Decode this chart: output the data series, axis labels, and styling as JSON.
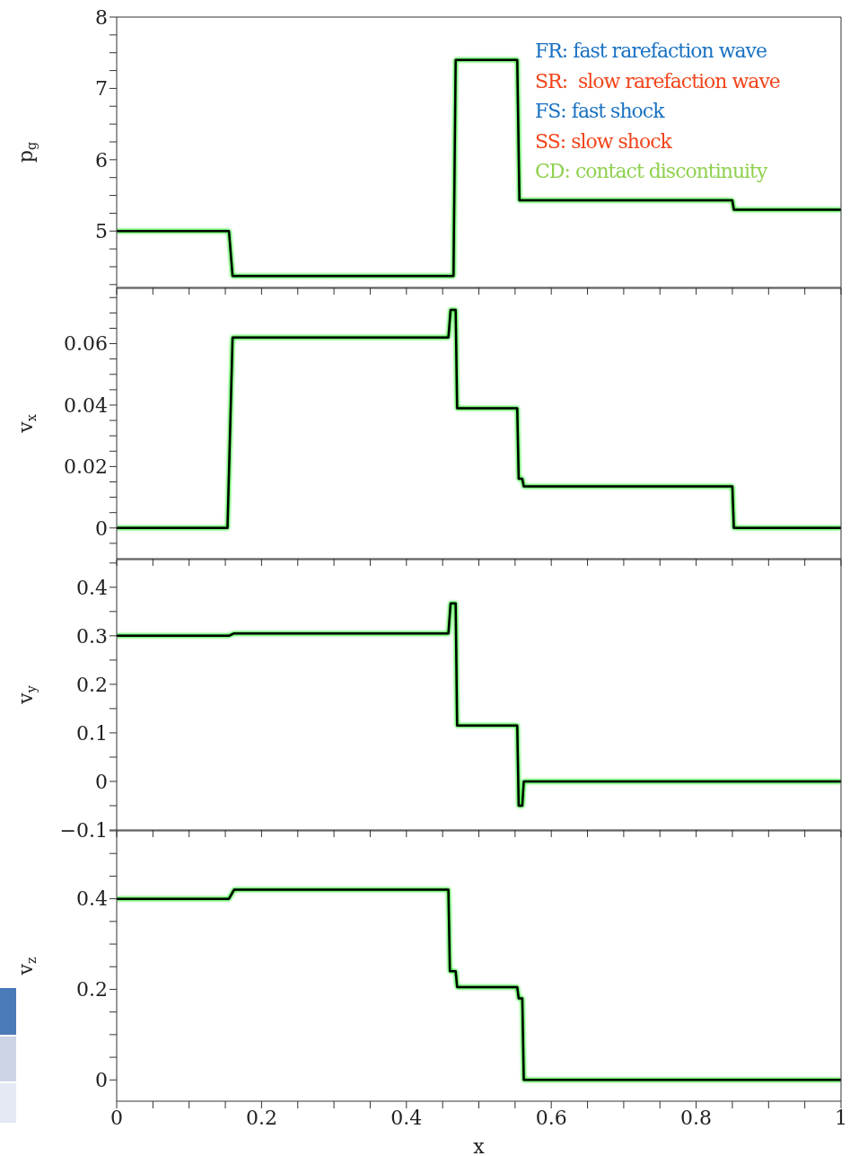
{
  "chart_data": [
    {
      "type": "line",
      "ylabel": "p$_{g}$",
      "xlim": [
        0,
        1
      ],
      "ylim": [
        4.21,
        8
      ],
      "tick_labels": "y",
      "xticks": [
        0,
        {
          "value": 0.05,
          "label": null
        },
        {
          "value": 0.1,
          "label": null
        },
        {
          "value": 0.15,
          "label": null
        },
        {
          "value": 0.2,
          "label": null
        },
        {
          "value": 0.25,
          "label": null
        },
        {
          "value": 0.3,
          "label": null
        },
        {
          "value": 0.35,
          "label": null
        },
        {
          "value": 0.4,
          "label": null
        },
        {
          "value": 0.45,
          "label": null
        },
        {
          "value": 0.5,
          "label": null
        },
        {
          "value": 0.55,
          "label": null
        },
        {
          "value": 0.6,
          "label": null
        },
        {
          "value": 0.65,
          "label": null
        },
        {
          "value": 0.7,
          "label": null
        },
        {
          "value": 0.75,
          "label": null
        },
        {
          "value": 0.8,
          "label": null
        },
        {
          "value": 0.85,
          "label": null
        },
        {
          "value": 0.9,
          "label": null
        },
        {
          "value": 0.95,
          "label": null
        },
        {
          "value": 1,
          "label": null
        }
      ],
      "yticks": [
        {
          "value": 4.25,
          "label": null
        },
        {
          "value": 4.5,
          "label": null
        },
        {
          "value": 4.75,
          "label": null
        },
        5,
        {
          "value": 5.25,
          "label": null
        },
        {
          "value": 5.5,
          "label": null
        },
        {
          "value": 5.75,
          "label": null
        },
        6,
        {
          "value": 6.25,
          "label": null
        },
        {
          "value": 6.5,
          "label": null
        },
        {
          "value": 6.75,
          "label": null
        },
        7,
        {
          "value": 7.25,
          "label": null
        },
        {
          "value": 7.5,
          "label": null
        },
        {
          "value": 7.75,
          "label": null
        },
        8
      ],
      "annotations": [
        "FR: fast rarefaction wave",
        "SR:  slow rarefaction wave",
        "FS: fast shock",
        "SS: slow shock",
        "CD: contact discontinuity"
      ],
      "series": [
        {
          "color": "#000000",
          "x": [
            0,
            0.155,
            0.16,
            0.465,
            0.468,
            0.553,
            0.556,
            0.85,
            0.852,
            1
          ],
          "values": [
            5,
            5,
            4.37,
            4.37,
            7.4,
            7.4,
            5.43,
            5.43,
            5.3,
            5.3
          ]
        }
      ]
    },
    {
      "type": "line",
      "ylabel": "v$_{x}$",
      "xlim": [
        0,
        1
      ],
      "ylim": [
        -0.01,
        0.078
      ],
      "tick_labels": "y",
      "xticks": [
        0,
        {
          "value": 0.05,
          "label": null
        },
        {
          "value": 0.1,
          "label": null
        },
        {
          "value": 0.15,
          "label": null
        },
        {
          "value": 0.2,
          "label": null
        },
        {
          "value": 0.25,
          "label": null
        },
        {
          "value": 0.3,
          "label": null
        },
        {
          "value": 0.35,
          "label": null
        },
        {
          "value": 0.4,
          "label": null
        },
        {
          "value": 0.45,
          "label": null
        },
        {
          "value": 0.5,
          "label": null
        },
        {
          "value": 0.55,
          "label": null
        },
        {
          "value": 0.6,
          "label": null
        },
        {
          "value": 0.65,
          "label": null
        },
        {
          "value": 0.7,
          "label": null
        },
        {
          "value": 0.75,
          "label": null
        },
        {
          "value": 0.8,
          "label": null
        },
        {
          "value": 0.85,
          "label": null
        },
        {
          "value": 0.9,
          "label": null
        },
        {
          "value": 0.95,
          "label": null
        },
        {
          "value": 1,
          "label": null
        }
      ],
      "yticks": [
        {
          "value": -0.005,
          "label": null
        },
        0,
        {
          "value": 0.005,
          "label": null
        },
        {
          "value": 0.01,
          "label": null
        },
        {
          "value": 0.015,
          "label": null
        },
        {
          "value": 0.02,
          "label": "0.02"
        },
        {
          "value": 0.025,
          "label": null
        },
        {
          "value": 0.03,
          "label": null
        },
        {
          "value": 0.035,
          "label": null
        },
        {
          "value": 0.04,
          "label": "0.04"
        },
        {
          "value": 0.045,
          "label": null
        },
        {
          "value": 0.05,
          "label": null
        },
        {
          "value": 0.055,
          "label": null
        },
        {
          "value": 0.06,
          "label": "0.06"
        },
        {
          "value": 0.065,
          "label": null
        },
        {
          "value": 0.07,
          "label": null
        },
        {
          "value": 0.075,
          "label": null
        }
      ],
      "series": [
        {
          "color": "#000000",
          "x": [
            0,
            0.153,
            0.16,
            0.458,
            0.461,
            0.468,
            0.47,
            0.553,
            0.555,
            0.56,
            0.562,
            0.85,
            0.852,
            1
          ],
          "values": [
            0,
            0,
            0.062,
            0.062,
            0.071,
            0.071,
            0.039,
            0.039,
            0.016,
            0.016,
            0.0135,
            0.0135,
            0,
            0
          ]
        }
      ]
    },
    {
      "type": "line",
      "ylabel": "v$_{y}$",
      "xlim": [
        0,
        1
      ],
      "ylim": [
        -0.1,
        0.457
      ],
      "tick_labels": "y",
      "xticks": [
        0,
        {
          "value": 0.05,
          "label": null
        },
        {
          "value": 0.1,
          "label": null
        },
        {
          "value": 0.15,
          "label": null
        },
        {
          "value": 0.2,
          "label": null
        },
        {
          "value": 0.25,
          "label": null
        },
        {
          "value": 0.3,
          "label": null
        },
        {
          "value": 0.35,
          "label": null
        },
        {
          "value": 0.4,
          "label": null
        },
        {
          "value": 0.45,
          "label": null
        },
        {
          "value": 0.5,
          "label": null
        },
        {
          "value": 0.55,
          "label": null
        },
        {
          "value": 0.6,
          "label": null
        },
        {
          "value": 0.65,
          "label": null
        },
        {
          "value": 0.7,
          "label": null
        },
        {
          "value": 0.75,
          "label": null
        },
        {
          "value": 0.8,
          "label": null
        },
        {
          "value": 0.85,
          "label": null
        },
        {
          "value": 0.9,
          "label": null
        },
        {
          "value": 0.95,
          "label": null
        },
        {
          "value": 1,
          "label": null
        }
      ],
      "yticks": [
        {
          "value": -0.1,
          "label": "−0.1"
        },
        {
          "value": -0.05,
          "label": null
        },
        0,
        {
          "value": 0.05,
          "label": null
        },
        0.1,
        {
          "value": 0.15,
          "label": null
        },
        0.2,
        {
          "value": 0.25,
          "label": null
        },
        0.3,
        {
          "value": 0.35,
          "label": null
        },
        0.4,
        {
          "value": 0.45,
          "label": null
        }
      ],
      "series": [
        {
          "color": "#000000",
          "x": [
            0,
            0.155,
            0.162,
            0.458,
            0.461,
            0.468,
            0.47,
            0.553,
            0.555,
            0.56,
            0.562,
            1
          ],
          "values": [
            0.3,
            0.3,
            0.305,
            0.305,
            0.367,
            0.367,
            0.115,
            0.115,
            -0.05,
            -0.05,
            0,
            0
          ]
        }
      ]
    },
    {
      "type": "line",
      "ylabel": "v$_{z}$",
      "xlabel": "x",
      "xlim": [
        0,
        1
      ],
      "ylim": [
        -0.047,
        0.55
      ],
      "xticks": [
        0,
        {
          "value": 0.05,
          "label": null
        },
        {
          "value": 0.1,
          "label": null
        },
        {
          "value": 0.15,
          "label": null
        },
        0.2,
        {
          "value": 0.25,
          "label": null
        },
        {
          "value": 0.3,
          "label": null
        },
        {
          "value": 0.35,
          "label": null
        },
        0.4,
        {
          "value": 0.45,
          "label": null
        },
        {
          "value": 0.5,
          "label": null
        },
        {
          "value": 0.55,
          "label": null
        },
        0.6,
        {
          "value": 0.65,
          "label": null
        },
        {
          "value": 0.7,
          "label": null
        },
        {
          "value": 0.75,
          "label": null
        },
        0.8,
        {
          "value": 0.85,
          "label": null
        },
        {
          "value": 0.9,
          "label": null
        },
        {
          "value": 0.95,
          "label": null
        },
        1
      ],
      "yticks": [
        0,
        {
          "value": 0.05,
          "label": null
        },
        {
          "value": 0.1,
          "label": null
        },
        {
          "value": 0.15,
          "label": null
        },
        0.2,
        {
          "value": 0.25,
          "label": null
        },
        {
          "value": 0.3,
          "label": null
        },
        {
          "value": 0.35,
          "label": null
        },
        0.4,
        {
          "value": 0.45,
          "label": null
        },
        {
          "value": 0.5,
          "label": null
        },
        {
          "value": 0.55,
          "label": null
        }
      ],
      "series": [
        {
          "color": "#000000",
          "x": [
            0,
            0.155,
            0.162,
            0.458,
            0.46,
            0.468,
            0.47,
            0.553,
            0.555,
            0.56,
            0.562,
            1
          ],
          "values": [
            0.4,
            0.4,
            0.42,
            0.42,
            0.24,
            0.24,
            0.205,
            0.205,
            0.18,
            0.18,
            0,
            0
          ]
        }
      ]
    }
  ]
}
